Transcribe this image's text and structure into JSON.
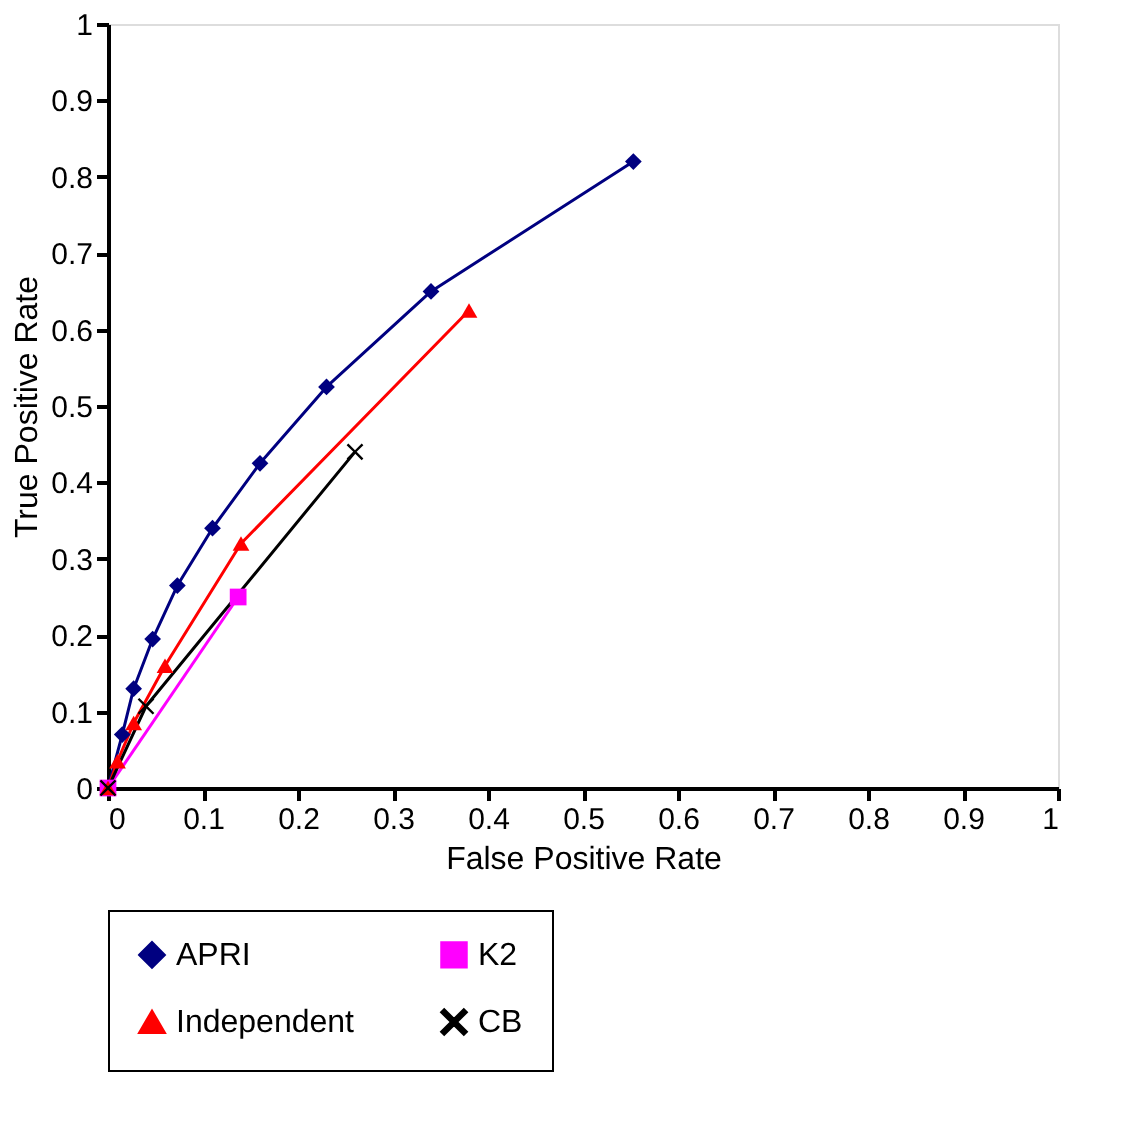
{
  "chart_data": {
    "type": "line",
    "xlabel": "False Positive Rate",
    "ylabel": "True Positive Rate",
    "xlim": [
      0,
      1
    ],
    "ylim": [
      0,
      1
    ],
    "xticks": [
      0,
      0.1,
      0.2,
      0.3,
      0.4,
      0.5,
      0.6,
      0.7,
      0.8,
      0.9,
      1
    ],
    "yticks": [
      0,
      0.1,
      0.2,
      0.3,
      0.4,
      0.5,
      0.6,
      0.7,
      0.8,
      0.9,
      1
    ],
    "grid": false,
    "legend": "bottom",
    "line_style": "solid",
    "series": [
      {
        "name": "APRI",
        "color": "#000080",
        "marker": "diamond",
        "x": [
          0,
          0.015,
          0.027,
          0.047,
          0.073,
          0.11,
          0.16,
          0.23,
          0.34,
          0.553
        ],
        "values": [
          0,
          0.07,
          0.13,
          0.195,
          0.265,
          0.34,
          0.425,
          0.525,
          0.65,
          0.82
        ]
      },
      {
        "name": "K2",
        "color": "#ff00ff",
        "marker": "square",
        "x": [
          0,
          0.137
        ],
        "values": [
          0,
          0.25
        ]
      },
      {
        "name": "Independent",
        "color": "#ff0000",
        "marker": "triangle",
        "x": [
          0,
          0.01,
          0.027,
          0.06,
          0.14,
          0.38
        ],
        "values": [
          0,
          0.035,
          0.085,
          0.16,
          0.32,
          0.625
        ]
      },
      {
        "name": "CB",
        "color": "#000000",
        "marker": "cross",
        "x": [
          0,
          0.04,
          0.26
        ],
        "values": [
          0,
          0.107,
          0.44
        ]
      }
    ]
  }
}
